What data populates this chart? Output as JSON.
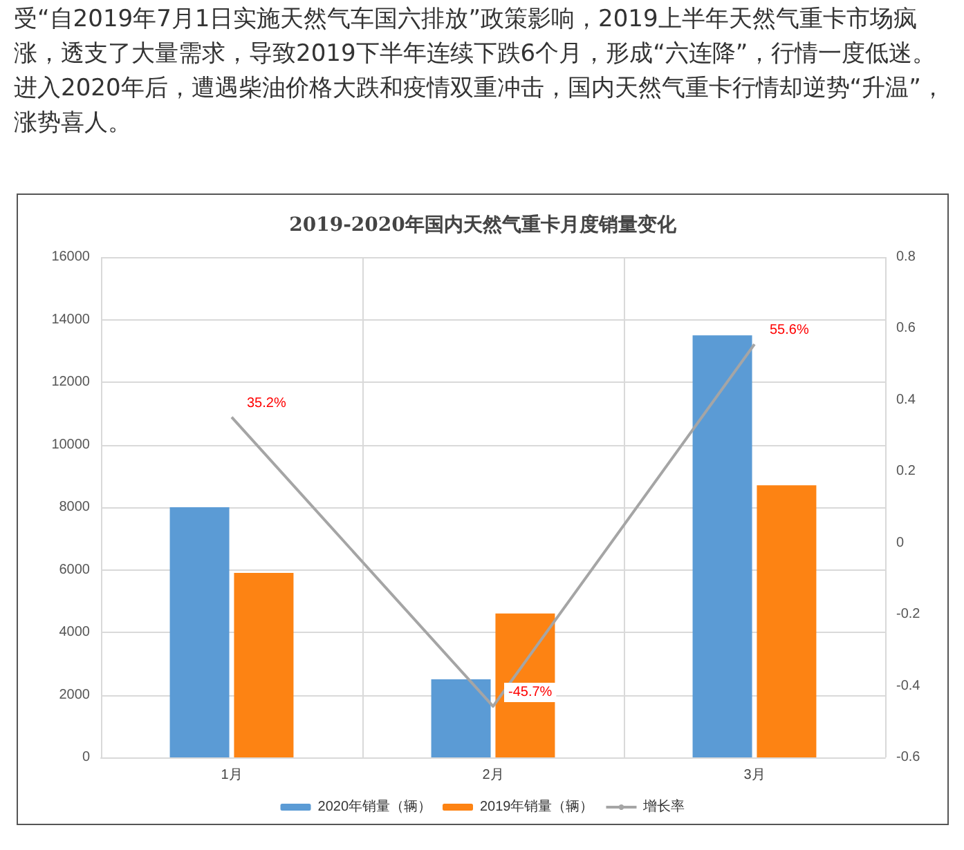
{
  "chart_data": {
    "type": "bar",
    "title": "2019-2020年国内天然气重卡月度销量变化",
    "annotations": [
      "受“自2019年7月1日实施天然气车国六排放”政策影响，2019上半年天然气重卡市场疯涨，透支了大量需求，导致2019下半年连续下跌6个月，形成“六连降”，行情一度低迷。进入2020年后，遭遇柴油价格大跌和疫情双重冲击，国内天然气重卡行情却逆势“升温”，涨势喜人。"
    ],
    "categories": [
      "1月",
      "2月",
      "3月"
    ],
    "series": [
      {
        "name": "2020年销量（辆）",
        "color": "#5b9bd5",
        "values": [
          8000,
          2500,
          13500
        ]
      },
      {
        "name": "2019年销量（辆）",
        "color": "#fd8313",
        "values": [
          5900,
          4600,
          8700
        ]
      },
      {
        "name": "增长率",
        "type": "line",
        "axis": "y2",
        "color": "#a5a5a5",
        "values": [
          0.352,
          -0.457,
          0.556
        ],
        "value_labels": [
          "35.2%",
          "-45.7%",
          "55.6%"
        ]
      }
    ],
    "ylim": [
      0,
      16000
    ],
    "yticks": [
      0,
      2000,
      4000,
      6000,
      8000,
      10000,
      12000,
      14000,
      16000
    ],
    "y2lim": [
      -0.6,
      0.8
    ],
    "y2ticks": [
      -0.6,
      -0.4,
      -0.2,
      0,
      0.2,
      0.4,
      0.6,
      0.8
    ],
    "grid": true,
    "legend": "bottom"
  }
}
